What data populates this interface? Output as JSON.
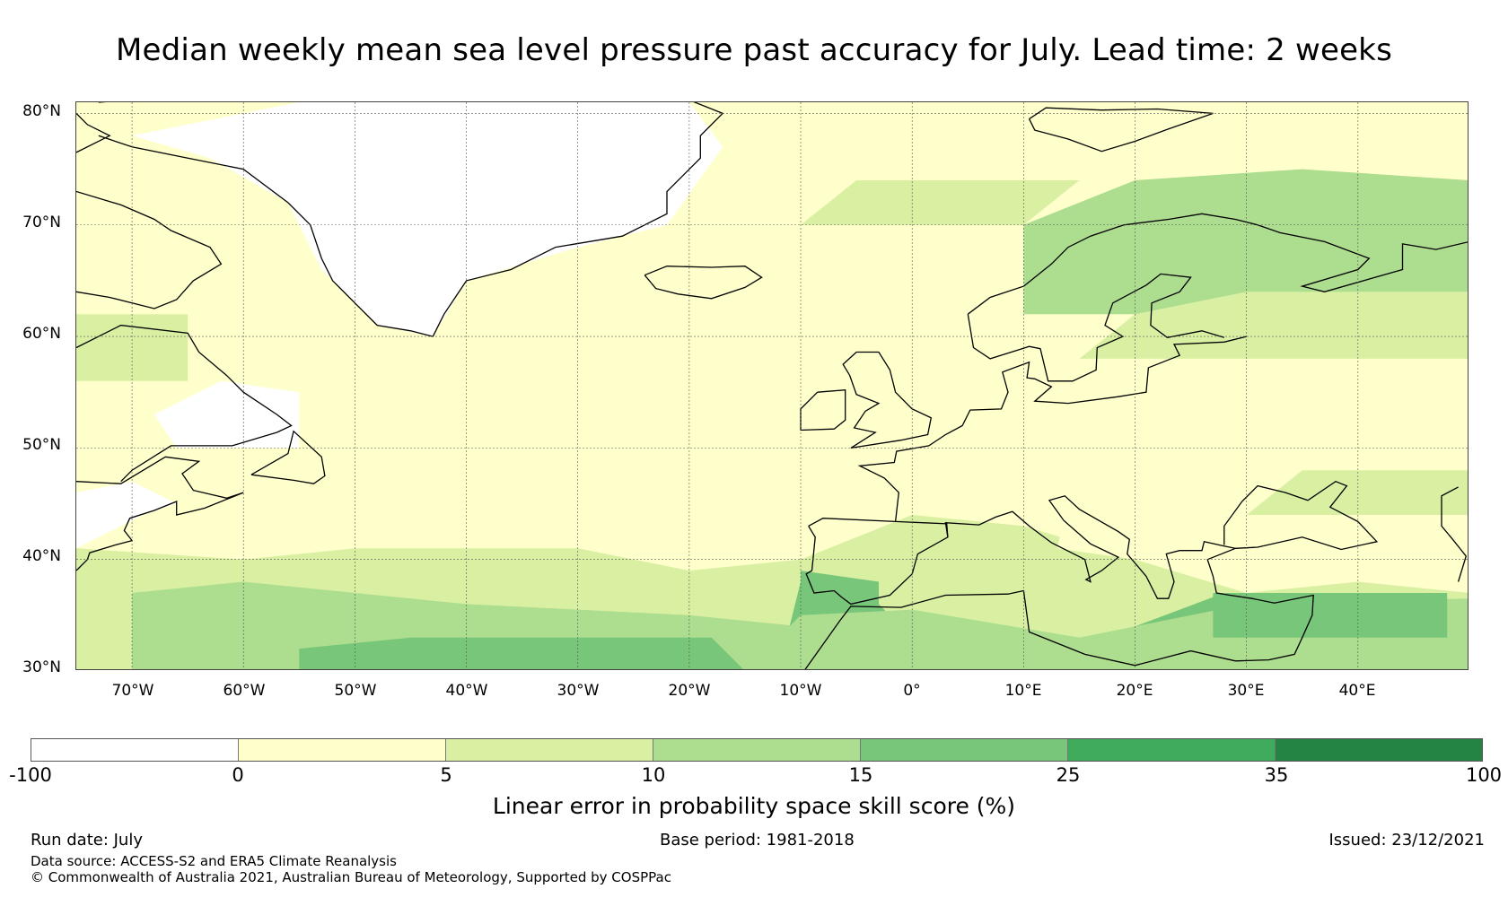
{
  "title": "Median weekly mean sea level pressure past accuracy for July. Lead time: 2 weeks",
  "map": {
    "lat_labels": [
      "80°N",
      "70°N",
      "60°N",
      "50°N",
      "40°N",
      "30°N"
    ],
    "lon_labels": [
      "70°W",
      "60°W",
      "50°W",
      "40°W",
      "30°W",
      "20°W",
      "10°W",
      "0°",
      "10°E",
      "20°E",
      "30°E",
      "40°E"
    ],
    "lat_range": [
      30,
      81
    ],
    "lon_range": [
      -75,
      50
    ],
    "lat_lines": [
      30,
      40,
      50,
      60,
      70,
      80
    ],
    "lon_lines": [
      -70,
      -60,
      -50,
      -40,
      -30,
      -20,
      -10,
      0,
      10,
      20,
      30,
      40
    ],
    "gridlines": true,
    "coastlines": true
  },
  "colorbar": {
    "ticks": [
      "-100",
      "0",
      "5",
      "10",
      "15",
      "25",
      "35",
      "100"
    ],
    "colors": [
      "#ffffff",
      "#ffffcc",
      "#d9f0a3",
      "#addd8e",
      "#78c679",
      "#41ab5d",
      "#238443"
    ],
    "label": "Linear error in probability space skill score (%)"
  },
  "footer": {
    "run_date": "Run date: July",
    "base_period": "Base period: 1981-2018",
    "issued": "Issued: 23/12/2021",
    "data_source": "Data source: ACCESS-S2 and ERA5 Climate Reanalysis",
    "copyright": "© Commonwealth of Australia 2021, Australian Bureau of Meteorology, Supported by COSPPac"
  }
}
